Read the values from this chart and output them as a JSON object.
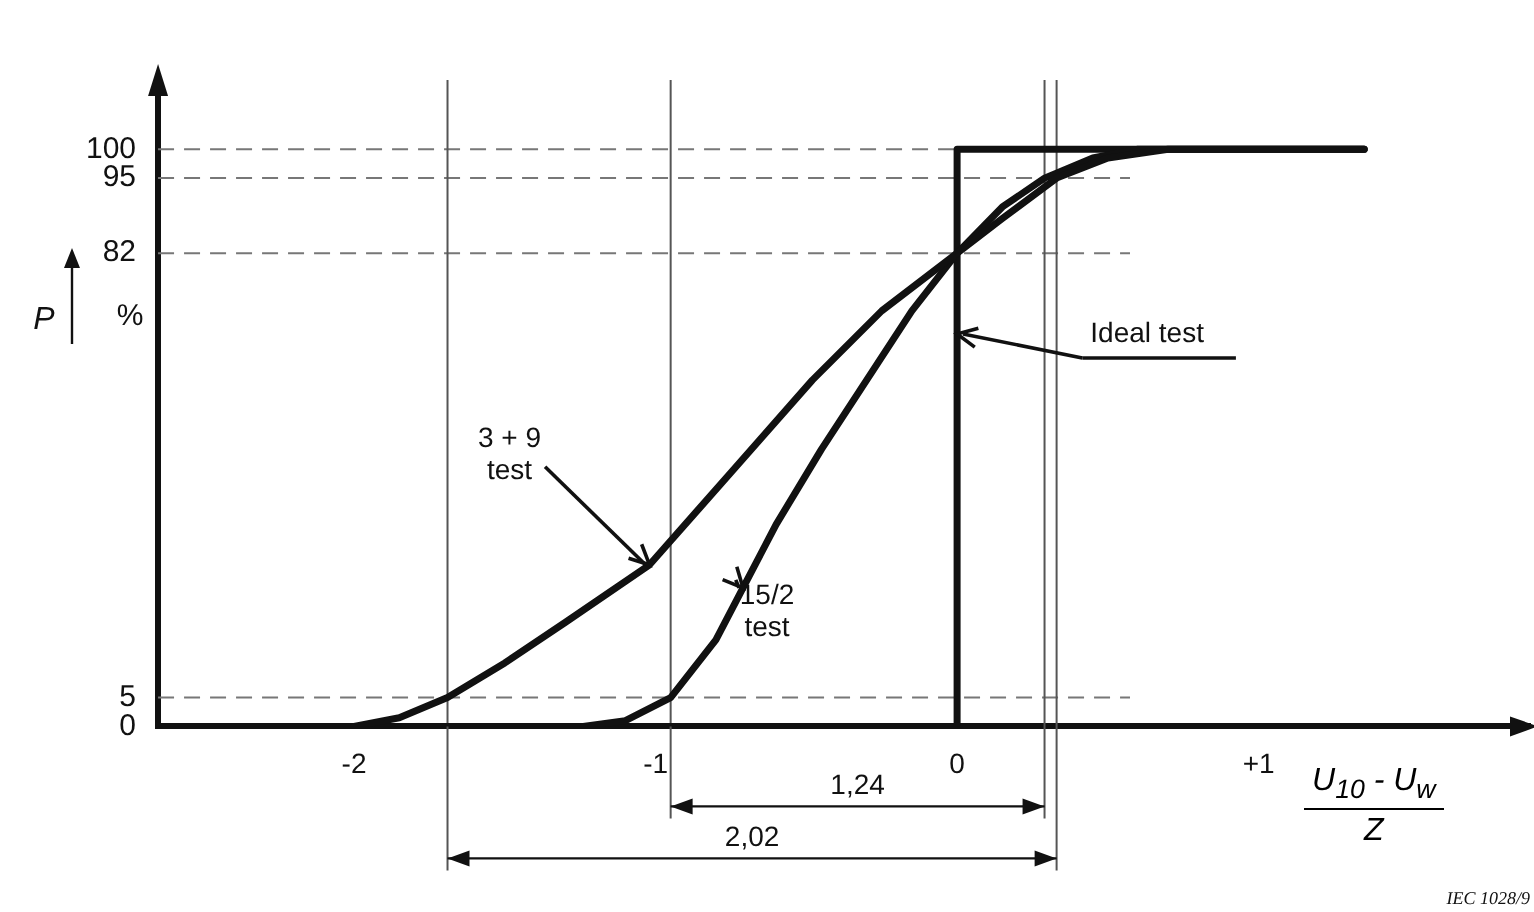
{
  "chart_data": {
    "type": "line",
    "xlabel": "U$_{10}$ - U$_{w}$",
    "ylabel": "P",
    "xlim": [
      -2.65,
      1.9
    ],
    "ylim": [
      0,
      112
    ],
    "xticks": [
      -2,
      -1,
      0,
      {
        "value": 1,
        "label": "+1"
      }
    ],
    "yticks": [
      0,
      5,
      82,
      95,
      100
    ],
    "series": [
      {
        "color": "#111111",
        "x": [
          -2.0,
          -1.85,
          -1.69,
          -1.5,
          -1.3,
          -1.02,
          -0.75,
          -0.48,
          -0.25,
          0,
          0.15,
          0.33,
          0.5,
          0.7,
          1.35
        ],
        "values": [
          0,
          1.5,
          5,
          11,
          18,
          28,
          44,
          60,
          72,
          82,
          88,
          95,
          98.5,
          100,
          100
        ]
      },
      {
        "color": "#111111",
        "x": [
          -1.24,
          -1.1,
          -0.95,
          -0.8,
          -0.71,
          -0.6,
          -0.45,
          -0.3,
          -0.15,
          0,
          0.15,
          0.29,
          0.45,
          0.6,
          1.35
        ],
        "values": [
          0,
          1,
          5,
          15,
          24,
          35,
          48,
          60,
          72,
          82,
          90,
          95,
          98.5,
          100,
          100
        ]
      },
      {
        "color": "#111111",
        "x": [
          -2.65,
          0,
          0,
          1.35
        ],
        "values": [
          0,
          0,
          100,
          100
        ]
      }
    ],
    "ref_lines": [
      {
        "axis": "y",
        "value": 5,
        "color": "#777777",
        "line_style": "dashed"
      },
      {
        "axis": "y",
        "value": 82,
        "color": "#777777",
        "line_style": "dashed"
      },
      {
        "axis": "y",
        "value": 95,
        "color": "#777777",
        "line_style": "dashed"
      },
      {
        "axis": "y",
        "value": 100,
        "color": "#777777",
        "line_style": "dashed"
      },
      {
        "axis": "x",
        "value": -0.95,
        "color": "#555555",
        "line_style": "solid"
      },
      {
        "axis": "x",
        "value": 0.29,
        "color": "#555555",
        "line_style": "solid"
      },
      {
        "axis": "x",
        "value": -1.69,
        "color": "#555555",
        "line_style": "solid"
      },
      {
        "axis": "x",
        "value": 0.33,
        "color": "#555555",
        "line_style": "solid"
      }
    ],
    "annotations": [
      {
        "text": "3 + 9\ntest",
        "x": -1.02,
        "y": 28
      },
      {
        "text": "15/2\ntest",
        "x": -0.71,
        "y": 24
      },
      {
        "text": "Ideal test",
        "x": 0,
        "y": 68
      },
      "%",
      "1,24",
      "2,02",
      "Z",
      "IEC 1028/9"
    ],
    "grid": false,
    "legend": false,
    "marker": "none",
    "line_style": "solid"
  }
}
